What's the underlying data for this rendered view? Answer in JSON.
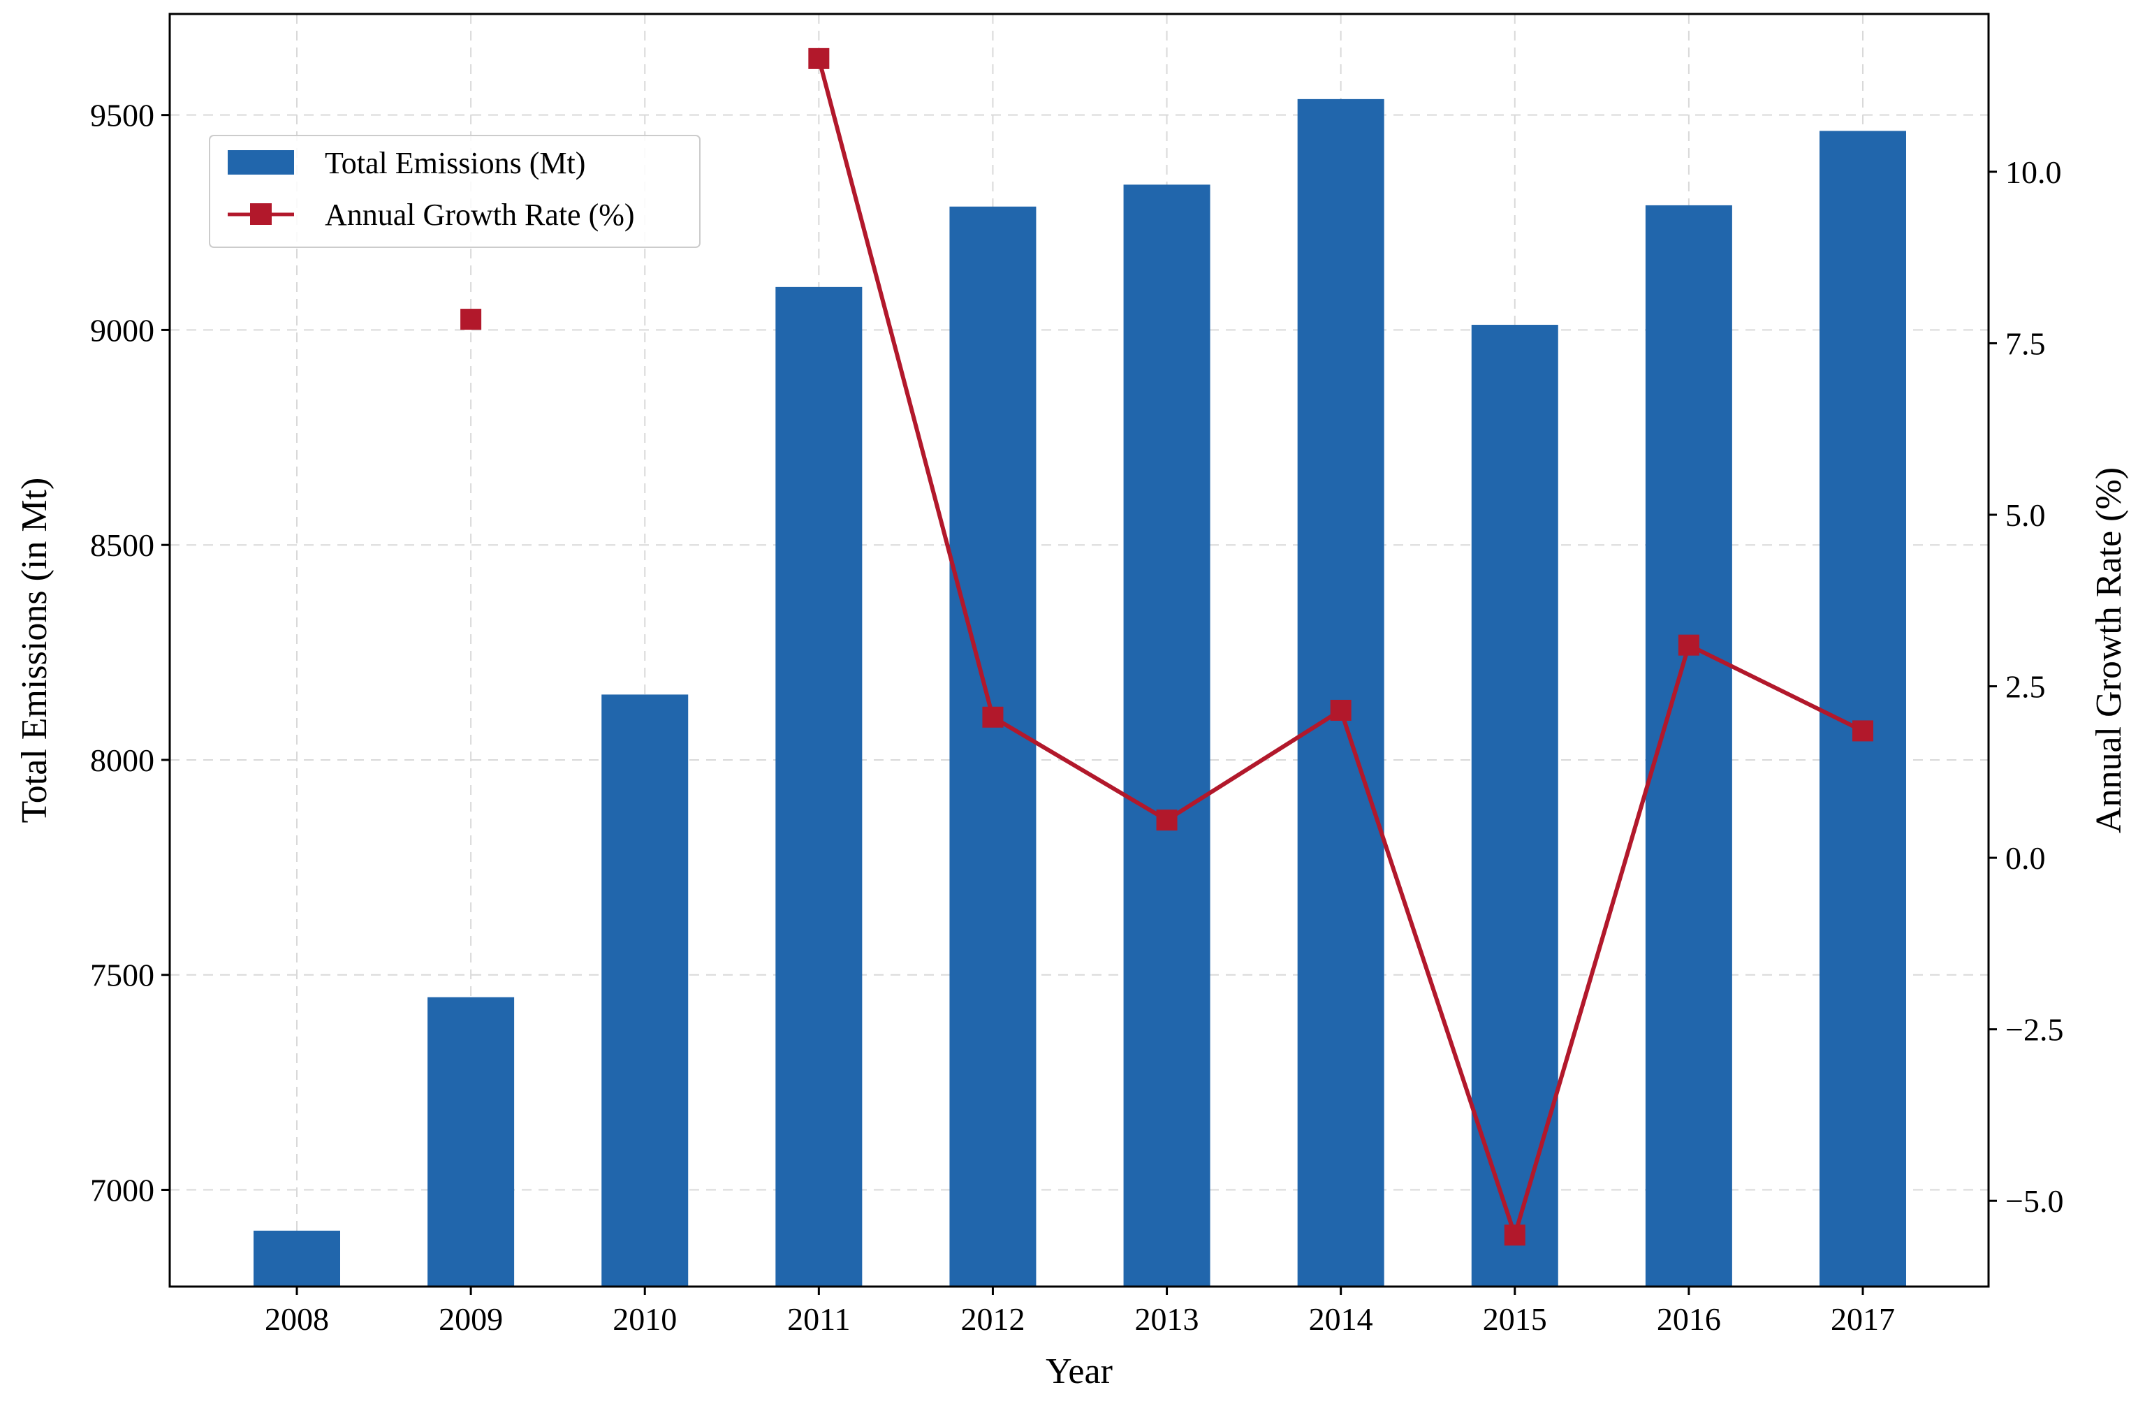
{
  "chart_data": {
    "type": "bar",
    "categories": [
      "2008",
      "2009",
      "2010",
      "2011",
      "2012",
      "2013",
      "2014",
      "2015",
      "2016",
      "2017"
    ],
    "series": [
      {
        "name": "Total Emissions (Mt)",
        "type": "bar",
        "axis": "left",
        "color": "#2166ac",
        "values": [
          6905,
          7448,
          8152,
          9100,
          9287,
          9338,
          9537,
          9012,
          9290,
          9463
        ]
      },
      {
        "name": "Annual Growth Rate (%)",
        "type": "line",
        "axis": "right",
        "color": "#b2182b",
        "marker": "square",
        "values": [
          null,
          7.85,
          null,
          11.65,
          2.05,
          0.55,
          2.15,
          -5.5,
          3.1,
          1.85
        ]
      }
    ],
    "xlabel": "Year",
    "ylabel": "Total Emissions (in Mt)",
    "y2label": "Annual Growth Rate (%)",
    "ylim": [
      6775,
      9735
    ],
    "y2lim": [
      -6.25,
      12.3
    ],
    "yticks": [
      "7000",
      "7500",
      "8000",
      "8500",
      "9000",
      "9500"
    ],
    "y2ticks": [
      "−5.0",
      "−2.5",
      "0.0",
      "2.5",
      "5.0",
      "7.5",
      "10.0"
    ],
    "grid": true,
    "legend_position": "top-left"
  }
}
